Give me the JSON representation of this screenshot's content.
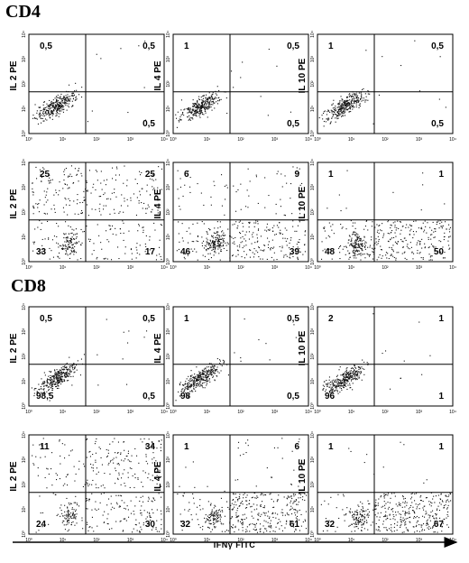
{
  "sections": [
    {
      "title": "CD4"
    },
    {
      "title": "CD8"
    }
  ],
  "x_axis_label": "IFNγ FITC",
  "chart_data": [
    {
      "type": "scatter",
      "section": "CD4",
      "ylabel": "IL 2 PE",
      "quadrants": {
        "upper_left": "0,5",
        "upper_right": "0,5",
        "lower_left": "",
        "lower_right": "0,5"
      },
      "xlim": [
        1,
        10000
      ],
      "ylim": [
        1,
        10000
      ],
      "x_ticks": [
        "10⁰",
        "10¹",
        "10²",
        "10³",
        "10⁴"
      ],
      "y_ticks": [
        "10⁰",
        "10¹",
        "10²",
        "10³",
        "10⁴"
      ],
      "log_scale": true,
      "pattern": "diagonal"
    },
    {
      "type": "scatter",
      "section": "CD4",
      "ylabel": "IL 4 PE",
      "quadrants": {
        "upper_left": "1",
        "upper_right": "0,5",
        "lower_left": "",
        "lower_right": "0,5"
      },
      "xlim": [
        1,
        10000
      ],
      "ylim": [
        1,
        10000
      ],
      "x_ticks": [
        "10⁰",
        "10¹",
        "10²",
        "10³",
        "10⁴"
      ],
      "y_ticks": [
        "10⁰",
        "10¹",
        "10²",
        "10³",
        "10⁴"
      ],
      "log_scale": true,
      "pattern": "diagonal"
    },
    {
      "type": "scatter",
      "section": "CD4",
      "ylabel": "IL 10 PE",
      "quadrants": {
        "upper_left": "1",
        "upper_right": "0,5",
        "lower_left": "",
        "lower_right": "0,5"
      },
      "xlim": [
        1,
        10000
      ],
      "ylim": [
        1,
        10000
      ],
      "x_ticks": [
        "10⁰",
        "10¹",
        "10²",
        "10³",
        "10⁴"
      ],
      "y_ticks": [
        "10⁰",
        "10¹",
        "10²",
        "10³",
        "10⁴"
      ],
      "log_scale": true,
      "pattern": "diagonal"
    },
    {
      "type": "scatter",
      "section": "CD4",
      "ylabel": "IL 2 PE",
      "quadrants": {
        "upper_left": "25",
        "upper_right": "25",
        "lower_left": "33",
        "lower_right": "17"
      },
      "xlim": [
        1,
        10000
      ],
      "ylim": [
        1,
        10000
      ],
      "x_ticks": [
        "10⁰",
        "10¹",
        "10²",
        "10³",
        "10⁴"
      ],
      "y_ticks": [
        "10⁰",
        "10¹",
        "10²",
        "10³",
        "10⁴"
      ],
      "log_scale": true,
      "pattern": "spread"
    },
    {
      "type": "scatter",
      "section": "CD4",
      "ylabel": "IL 4 PE",
      "quadrants": {
        "upper_left": "6",
        "upper_right": "9",
        "lower_left": "46",
        "lower_right": "39"
      },
      "xlim": [
        1,
        10000
      ],
      "ylim": [
        1,
        10000
      ],
      "x_ticks": [
        "10⁰",
        "10¹",
        "10²",
        "10³",
        "10⁴"
      ],
      "y_ticks": [
        "10⁰",
        "10¹",
        "10²",
        "10³",
        "10⁴"
      ],
      "log_scale": true,
      "pattern": "spread"
    },
    {
      "type": "scatter",
      "section": "CD4",
      "ylabel": "IL 10 PE",
      "quadrants": {
        "upper_left": "1",
        "upper_right": "1",
        "lower_left": "48",
        "lower_right": "50"
      },
      "xlim": [
        1,
        10000
      ],
      "ylim": [
        1,
        10000
      ],
      "x_ticks": [
        "10⁰",
        "10¹",
        "10²",
        "10³",
        "10⁴"
      ],
      "y_ticks": [
        "10⁰",
        "10¹",
        "10²",
        "10³",
        "10⁴"
      ],
      "log_scale": true,
      "pattern": "spread"
    },
    {
      "type": "scatter",
      "section": "CD8",
      "ylabel": "IL 2 PE",
      "quadrants": {
        "upper_left": "0,5",
        "upper_right": "0,5",
        "lower_left": "98,5",
        "lower_right": "0,5"
      },
      "xlim": [
        1,
        10000
      ],
      "ylim": [
        1,
        10000
      ],
      "x_ticks": [
        "10⁰",
        "10¹",
        "10²",
        "10³",
        "10⁴"
      ],
      "y_ticks": [
        "10⁰",
        "10¹",
        "10²",
        "10³",
        "10⁴"
      ],
      "log_scale": true,
      "pattern": "diagonal"
    },
    {
      "type": "scatter",
      "section": "CD8",
      "ylabel": "IL 4 PE",
      "quadrants": {
        "upper_left": "1",
        "upper_right": "0,5",
        "lower_left": "98",
        "lower_right": "0,5"
      },
      "xlim": [
        1,
        10000
      ],
      "ylim": [
        1,
        10000
      ],
      "x_ticks": [
        "10⁰",
        "10¹",
        "10²",
        "10³",
        "10⁴"
      ],
      "y_ticks": [
        "10⁰",
        "10¹",
        "10²",
        "10³",
        "10⁴"
      ],
      "log_scale": true,
      "pattern": "diagonal"
    },
    {
      "type": "scatter",
      "section": "CD8",
      "ylabel": "IL 10 PE",
      "quadrants": {
        "upper_left": "2",
        "upper_right": "1",
        "lower_left": "96",
        "lower_right": "1"
      },
      "xlim": [
        1,
        10000
      ],
      "ylim": [
        1,
        10000
      ],
      "x_ticks": [
        "10⁰",
        "10¹",
        "10²",
        "10³",
        "10⁴"
      ],
      "y_ticks": [
        "10⁰",
        "10¹",
        "10²",
        "10³",
        "10⁴"
      ],
      "log_scale": true,
      "pattern": "diagonal"
    },
    {
      "type": "scatter",
      "section": "CD8",
      "ylabel": "IL 2 PE",
      "quadrants": {
        "upper_left": "11",
        "upper_right": "34",
        "lower_left": "24",
        "lower_right": "30"
      },
      "xlim": [
        1,
        10000
      ],
      "ylim": [
        1,
        10000
      ],
      "x_ticks": [
        "10⁰",
        "10¹",
        "10²",
        "10³",
        "10⁴"
      ],
      "y_ticks": [
        "10⁰",
        "10¹",
        "10²",
        "10³",
        "10⁴"
      ],
      "log_scale": true,
      "pattern": "spread"
    },
    {
      "type": "scatter",
      "section": "CD8",
      "ylabel": "IL 4 PE",
      "quadrants": {
        "upper_left": "1",
        "upper_right": "6",
        "lower_left": "32",
        "lower_right": "61"
      },
      "xlim": [
        1,
        10000
      ],
      "ylim": [
        1,
        10000
      ],
      "x_ticks": [
        "10⁰",
        "10¹",
        "10²",
        "10³",
        "10⁴"
      ],
      "y_ticks": [
        "10⁰",
        "10¹",
        "10²",
        "10³",
        "10⁴"
      ],
      "log_scale": true,
      "pattern": "spread"
    },
    {
      "type": "scatter",
      "section": "CD8",
      "ylabel": "IL 10 PE",
      "quadrants": {
        "upper_left": "1",
        "upper_right": "1",
        "lower_left": "32",
        "lower_right": "67"
      },
      "xlim": [
        1,
        10000
      ],
      "ylim": [
        1,
        10000
      ],
      "x_ticks": [
        "10⁰",
        "10¹",
        "10²",
        "10³",
        "10⁴"
      ],
      "y_ticks": [
        "10⁰",
        "10¹",
        "10²",
        "10³",
        "10⁴"
      ],
      "log_scale": true,
      "pattern": "spread"
    }
  ]
}
